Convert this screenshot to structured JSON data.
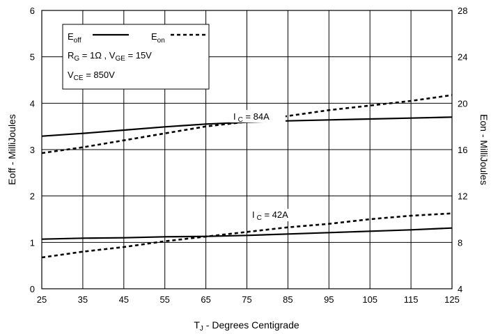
{
  "chart_data": {
    "type": "line",
    "x": [
      25,
      35,
      45,
      55,
      65,
      75,
      85,
      95,
      105,
      115,
      125
    ],
    "xlim": [
      25,
      125
    ],
    "ylim_left": [
      0,
      6
    ],
    "ylim_right": [
      4,
      28
    ],
    "x_ticks": [
      "25",
      "35",
      "45",
      "55",
      "65",
      "75",
      "85",
      "95",
      "105",
      "115",
      "125"
    ],
    "y_left_ticks": [
      "0",
      "1",
      "2",
      "3",
      "4",
      "5",
      "6"
    ],
    "y_right_ticks": [
      "4",
      "8",
      "12",
      "16",
      "20",
      "24",
      "28"
    ],
    "xlabel_main": "T",
    "xlabel_sub": "J",
    "xlabel_rest": " - Degrees Centigrade",
    "ylabel_left": "Eoff - MilliJoules",
    "ylabel_right": "Eon - MilliJoules",
    "grid": true,
    "legend": {
      "eoff_main": "E",
      "eoff_sub": "off",
      "eon_main": "E",
      "eon_sub": "on",
      "rg_main": "R",
      "rg_sub": "G",
      "rg_rest": " = 1Ω ,  V",
      "vge_sub": "GE",
      "vge_rest": " = 15V",
      "vce_main": "V",
      "vce_sub": "CE",
      "vce_rest": " = 850V"
    },
    "annotations": {
      "ic84_main": "I",
      "ic84_sub": "C",
      "ic84_rest": " = 84A",
      "ic42_main": "I",
      "ic42_sub": "C",
      "ic42_rest": " = 42A"
    },
    "series": [
      {
        "axis": "left",
        "style": "solid",
        "x": [
          25,
          35,
          45,
          55,
          65,
          75,
          85,
          95,
          105,
          115,
          125
        ],
        "values": [
          3.29,
          3.35,
          3.42,
          3.49,
          3.55,
          3.59,
          3.62,
          3.64,
          3.66,
          3.68,
          3.7
        ]
      },
      {
        "axis": "right",
        "style": "dashed",
        "x": [
          25,
          35,
          45,
          55,
          65,
          75,
          85,
          95,
          105,
          115,
          125
        ],
        "values": [
          15.7,
          16.2,
          16.8,
          17.4,
          18.0,
          18.4,
          18.9,
          19.4,
          19.8,
          20.2,
          20.7
        ]
      },
      {
        "axis": "left",
        "style": "solid",
        "x": [
          25,
          35,
          45,
          55,
          65,
          75,
          85,
          95,
          105,
          115,
          125
        ],
        "values": [
          1.07,
          1.09,
          1.1,
          1.12,
          1.13,
          1.15,
          1.18,
          1.21,
          1.24,
          1.27,
          1.31
        ]
      },
      {
        "axis": "right",
        "style": "dashed",
        "x": [
          25,
          35,
          45,
          55,
          65,
          75,
          85,
          95,
          105,
          115,
          125
        ],
        "values": [
          6.7,
          7.2,
          7.6,
          8.1,
          8.5,
          8.9,
          9.3,
          9.6,
          10.0,
          10.3,
          10.5
        ]
      }
    ]
  }
}
